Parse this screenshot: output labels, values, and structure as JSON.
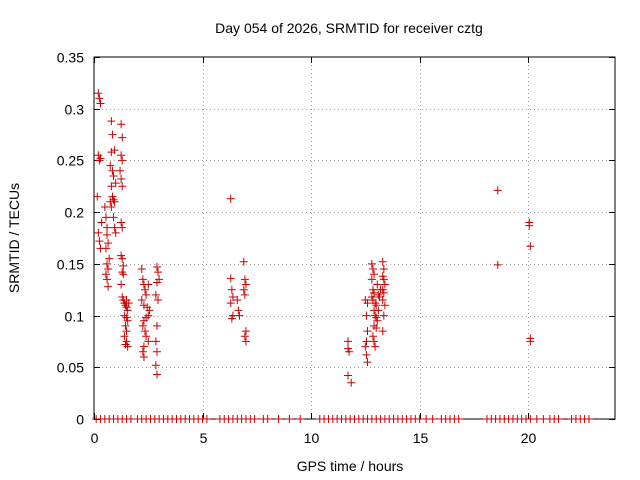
{
  "chart_data": {
    "type": "scatter",
    "title": "Day 054 of 2026, SRMTID for receiver cztg",
    "xlabel": "GPS time / hours",
    "ylabel": "SRMTID / TECUs",
    "xlim": [
      0,
      24
    ],
    "ylim": [
      0,
      0.35
    ],
    "xticks": [
      0,
      5,
      10,
      15,
      20
    ],
    "xtick_labels": [
      "0",
      "5",
      "10",
      "15",
      "20"
    ],
    "yticks": [
      0,
      0.05,
      0.1,
      0.15,
      0.2,
      0.25,
      0.3,
      0.35
    ],
    "ytick_labels": [
      "0",
      "0.05",
      "0.1",
      "0.15",
      "0.2",
      "0.25",
      "0.3",
      "0.35"
    ],
    "grid": true,
    "marker": "+",
    "color": "#cc0000",
    "series": [
      {
        "name": "SRMTID",
        "points": [
          [
            0.2,
            0.315
          ],
          [
            0.25,
            0.31
          ],
          [
            0.3,
            0.305
          ],
          [
            0.2,
            0.255
          ],
          [
            0.25,
            0.25
          ],
          [
            0.3,
            0.252
          ],
          [
            0.15,
            0.215
          ],
          [
            0.2,
            0.18
          ],
          [
            0.25,
            0.172
          ],
          [
            0.3,
            0.165
          ],
          [
            0.35,
            0.19
          ],
          [
            0.5,
            0.205
          ],
          [
            0.55,
            0.195
          ],
          [
            0.6,
            0.185
          ],
          [
            0.6,
            0.178
          ],
          [
            0.65,
            0.17
          ],
          [
            0.55,
            0.165
          ],
          [
            0.6,
            0.15
          ],
          [
            0.65,
            0.145
          ],
          [
            0.55,
            0.14
          ],
          [
            0.6,
            0.135
          ],
          [
            0.65,
            0.128
          ],
          [
            0.7,
            0.155
          ],
          [
            0.8,
            0.288
          ],
          [
            0.85,
            0.275
          ],
          [
            0.8,
            0.258
          ],
          [
            0.75,
            0.245
          ],
          [
            0.85,
            0.24
          ],
          [
            0.9,
            0.235
          ],
          [
            0.8,
            0.225
          ],
          [
            0.85,
            0.215
          ],
          [
            0.9,
            0.212
          ],
          [
            0.95,
            0.21
          ],
          [
            0.75,
            0.21
          ],
          [
            0.8,
            0.205
          ],
          [
            0.9,
            0.195
          ],
          [
            0.95,
            0.185
          ],
          [
            1.0,
            0.18
          ],
          [
            1.0,
            0.228
          ],
          [
            0.95,
            0.26
          ],
          [
            1.25,
            0.285
          ],
          [
            1.3,
            0.272
          ],
          [
            1.25,
            0.255
          ],
          [
            1.3,
            0.25
          ],
          [
            1.2,
            0.24
          ],
          [
            1.25,
            0.232
          ],
          [
            1.3,
            0.225
          ],
          [
            1.25,
            0.19
          ],
          [
            1.3,
            0.185
          ],
          [
            1.25,
            0.158
          ],
          [
            1.3,
            0.155
          ],
          [
            1.35,
            0.148
          ],
          [
            1.3,
            0.142
          ],
          [
            1.35,
            0.14
          ],
          [
            1.25,
            0.13
          ],
          [
            1.3,
            0.118
          ],
          [
            1.35,
            0.115
          ],
          [
            1.4,
            0.112
          ],
          [
            1.45,
            0.11
          ],
          [
            1.5,
            0.108
          ],
          [
            1.55,
            0.105
          ],
          [
            1.4,
            0.1
          ],
          [
            1.5,
            0.098
          ],
          [
            1.55,
            0.095
          ],
          [
            1.45,
            0.09
          ],
          [
            1.5,
            0.085
          ],
          [
            1.4,
            0.08
          ],
          [
            1.5,
            0.075
          ],
          [
            1.45,
            0.072
          ],
          [
            1.55,
            0.07
          ],
          [
            1.5,
            0.115
          ],
          [
            1.6,
            0.112
          ],
          [
            2.2,
            0.145
          ],
          [
            2.25,
            0.135
          ],
          [
            2.3,
            0.13
          ],
          [
            2.35,
            0.125
          ],
          [
            2.4,
            0.12
          ],
          [
            2.2,
            0.115
          ],
          [
            2.3,
            0.11
          ],
          [
            2.45,
            0.108
          ],
          [
            2.5,
            0.1
          ],
          [
            2.4,
            0.098
          ],
          [
            2.3,
            0.095
          ],
          [
            2.25,
            0.09
          ],
          [
            2.35,
            0.085
          ],
          [
            2.4,
            0.08
          ],
          [
            2.5,
            0.075
          ],
          [
            2.3,
            0.07
          ],
          [
            2.25,
            0.065
          ],
          [
            2.3,
            0.06
          ],
          [
            2.5,
            0.13
          ],
          [
            2.55,
            0.105
          ],
          [
            2.9,
            0.147
          ],
          [
            2.95,
            0.142
          ],
          [
            3.0,
            0.135
          ],
          [
            2.9,
            0.132
          ],
          [
            2.85,
            0.12
          ],
          [
            2.95,
            0.115
          ],
          [
            2.9,
            0.09
          ],
          [
            2.85,
            0.075
          ],
          [
            2.9,
            0.065
          ],
          [
            2.85,
            0.052
          ],
          [
            2.9,
            0.043
          ],
          [
            6.3,
            0.213
          ],
          [
            6.3,
            0.136
          ],
          [
            6.35,
            0.125
          ],
          [
            6.4,
            0.118
          ],
          [
            6.3,
            0.112
          ],
          [
            6.4,
            0.1
          ],
          [
            6.35,
            0.097
          ],
          [
            6.6,
            0.115
          ],
          [
            6.65,
            0.105
          ],
          [
            6.7,
            0.1
          ],
          [
            6.9,
            0.152
          ],
          [
            6.95,
            0.135
          ],
          [
            7.0,
            0.13
          ],
          [
            6.9,
            0.125
          ],
          [
            6.95,
            0.12
          ],
          [
            7.0,
            0.085
          ],
          [
            6.95,
            0.08
          ],
          [
            7.0,
            0.075
          ],
          [
            11.7,
            0.075
          ],
          [
            11.7,
            0.068
          ],
          [
            11.75,
            0.065
          ],
          [
            11.7,
            0.042
          ],
          [
            11.85,
            0.035
          ],
          [
            12.5,
            0.115
          ],
          [
            12.6,
            0.112
          ],
          [
            12.55,
            0.1
          ],
          [
            12.6,
            0.085
          ],
          [
            12.55,
            0.075
          ],
          [
            12.5,
            0.07
          ],
          [
            12.55,
            0.062
          ],
          [
            12.6,
            0.055
          ],
          [
            12.8,
            0.15
          ],
          [
            12.85,
            0.145
          ],
          [
            12.9,
            0.14
          ],
          [
            12.8,
            0.135
          ],
          [
            12.85,
            0.125
          ],
          [
            12.9,
            0.122
          ],
          [
            12.8,
            0.118
          ],
          [
            12.85,
            0.115
          ],
          [
            12.95,
            0.112
          ],
          [
            13.0,
            0.11
          ],
          [
            12.9,
            0.105
          ],
          [
            12.95,
            0.1
          ],
          [
            13.0,
            0.098
          ],
          [
            13.05,
            0.095
          ],
          [
            12.9,
            0.09
          ],
          [
            13.0,
            0.088
          ],
          [
            12.85,
            0.08
          ],
          [
            12.9,
            0.075
          ],
          [
            12.95,
            0.07
          ],
          [
            13.1,
            0.105
          ],
          [
            13.15,
            0.118
          ],
          [
            13.2,
            0.125
          ],
          [
            13.05,
            0.13
          ],
          [
            13.1,
            0.12
          ],
          [
            13.3,
            0.152
          ],
          [
            13.35,
            0.145
          ],
          [
            13.3,
            0.138
          ],
          [
            13.35,
            0.135
          ],
          [
            13.4,
            0.13
          ],
          [
            13.3,
            0.125
          ],
          [
            13.35,
            0.122
          ],
          [
            13.3,
            0.115
          ],
          [
            13.4,
            0.11
          ],
          [
            13.35,
            0.1
          ],
          [
            13.3,
            0.085
          ],
          [
            18.6,
            0.221
          ],
          [
            18.6,
            0.149
          ],
          [
            20.05,
            0.19
          ],
          [
            20.05,
            0.187
          ],
          [
            20.1,
            0.167
          ],
          [
            20.1,
            0.078
          ],
          [
            20.1,
            0.075
          ],
          [
            0.1,
            0
          ],
          [
            0.3,
            0
          ],
          [
            0.5,
            0
          ],
          [
            0.7,
            0
          ],
          [
            0.9,
            0
          ],
          [
            1.1,
            0
          ],
          [
            1.3,
            0
          ],
          [
            1.5,
            0
          ],
          [
            1.7,
            0
          ],
          [
            2.0,
            0
          ],
          [
            2.2,
            0
          ],
          [
            2.4,
            0
          ],
          [
            2.6,
            0
          ],
          [
            2.8,
            0
          ],
          [
            3.0,
            0
          ],
          [
            3.2,
            0
          ],
          [
            3.4,
            0
          ],
          [
            3.6,
            0
          ],
          [
            3.8,
            0
          ],
          [
            4.0,
            0
          ],
          [
            4.2,
            0
          ],
          [
            4.4,
            0
          ],
          [
            4.6,
            0
          ],
          [
            4.8,
            0
          ],
          [
            5.0,
            0
          ],
          [
            5.2,
            0
          ],
          [
            5.8,
            0
          ],
          [
            6.0,
            0
          ],
          [
            6.2,
            0
          ],
          [
            6.4,
            0
          ],
          [
            6.6,
            0
          ],
          [
            6.8,
            0
          ],
          [
            7.0,
            0
          ],
          [
            7.2,
            0
          ],
          [
            7.4,
            0
          ],
          [
            7.8,
            0
          ],
          [
            8.0,
            0
          ],
          [
            8.5,
            0
          ],
          [
            9.0,
            0
          ],
          [
            9.5,
            0
          ],
          [
            10.4,
            0
          ],
          [
            10.6,
            0
          ],
          [
            10.8,
            0
          ],
          [
            11.0,
            0
          ],
          [
            11.2,
            0
          ],
          [
            11.4,
            0
          ],
          [
            11.6,
            0
          ],
          [
            11.8,
            0
          ],
          [
            12.0,
            0
          ],
          [
            12.2,
            0
          ],
          [
            12.4,
            0
          ],
          [
            12.6,
            0
          ],
          [
            12.8,
            0
          ],
          [
            13.0,
            0
          ],
          [
            13.2,
            0
          ],
          [
            13.4,
            0
          ],
          [
            13.6,
            0
          ],
          [
            13.8,
            0
          ],
          [
            14.0,
            0
          ],
          [
            14.2,
            0
          ],
          [
            14.4,
            0
          ],
          [
            14.6,
            0
          ],
          [
            14.8,
            0
          ],
          [
            15.0,
            0
          ],
          [
            15.3,
            0
          ],
          [
            15.6,
            0
          ],
          [
            16.0,
            0
          ],
          [
            16.2,
            0
          ],
          [
            16.4,
            0
          ],
          [
            16.6,
            0
          ],
          [
            16.8,
            0
          ],
          [
            18.1,
            0
          ],
          [
            18.3,
            0
          ],
          [
            18.5,
            0
          ],
          [
            18.7,
            0
          ],
          [
            18.9,
            0
          ],
          [
            19.1,
            0
          ],
          [
            19.3,
            0
          ],
          [
            19.5,
            0
          ],
          [
            19.7,
            0
          ],
          [
            19.9,
            0
          ],
          [
            20.1,
            0
          ],
          [
            20.4,
            0
          ],
          [
            20.7,
            0
          ],
          [
            21.0,
            0
          ],
          [
            21.2,
            0
          ],
          [
            21.4,
            0
          ],
          [
            22.0,
            0
          ],
          [
            22.2,
            0
          ],
          [
            22.4,
            0
          ],
          [
            22.6,
            0
          ],
          [
            22.8,
            0
          ]
        ]
      }
    ]
  }
}
